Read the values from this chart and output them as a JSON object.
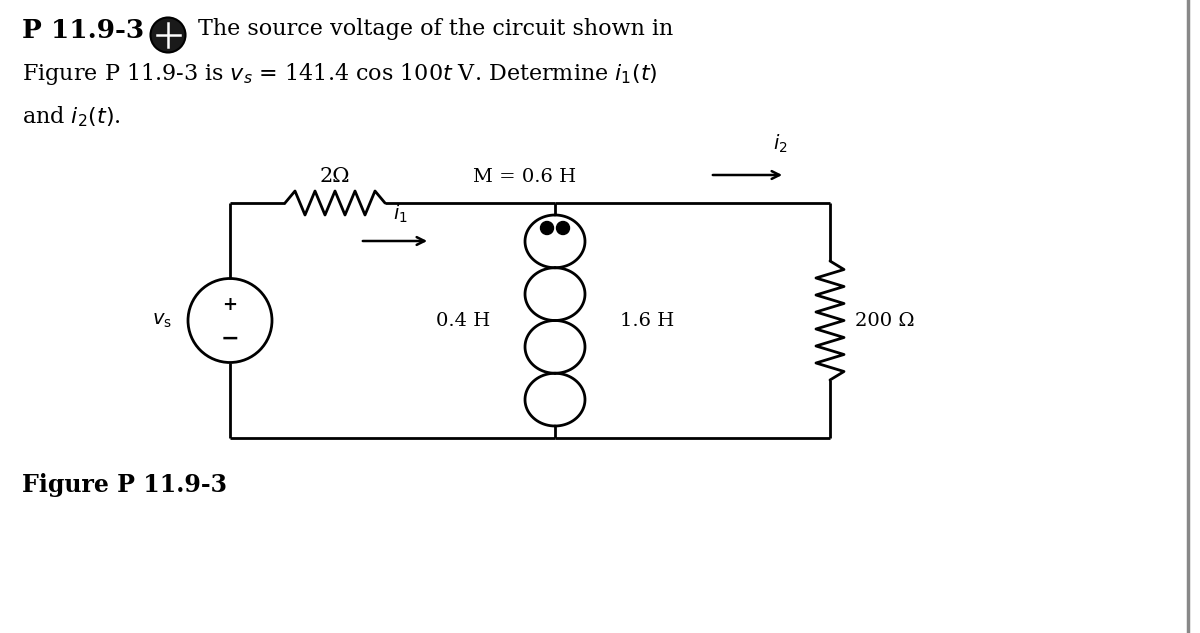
{
  "bg_color": "#ffffff",
  "line_color": "#000000",
  "resistor_label": "2Ω",
  "mutual_label": "M = 0.6 H",
  "i2_label": "i_2",
  "i1_label": "i_1",
  "L1_label": "0.4 H",
  "L2_label": "1.6 H",
  "R_label": "200 Ω",
  "vs_label": "v_s",
  "figure_label": "Figure P 11.9-3",
  "header_bold": "P 11.9-3",
  "header_line1": "The source voltage of the circuit shown in",
  "header_line2_a": "Figure P 11.9-3 is ",
  "header_line2_b": " = 141.4 cos 100",
  "header_line2_c": " V. Determine ",
  "header_line3": "and "
}
